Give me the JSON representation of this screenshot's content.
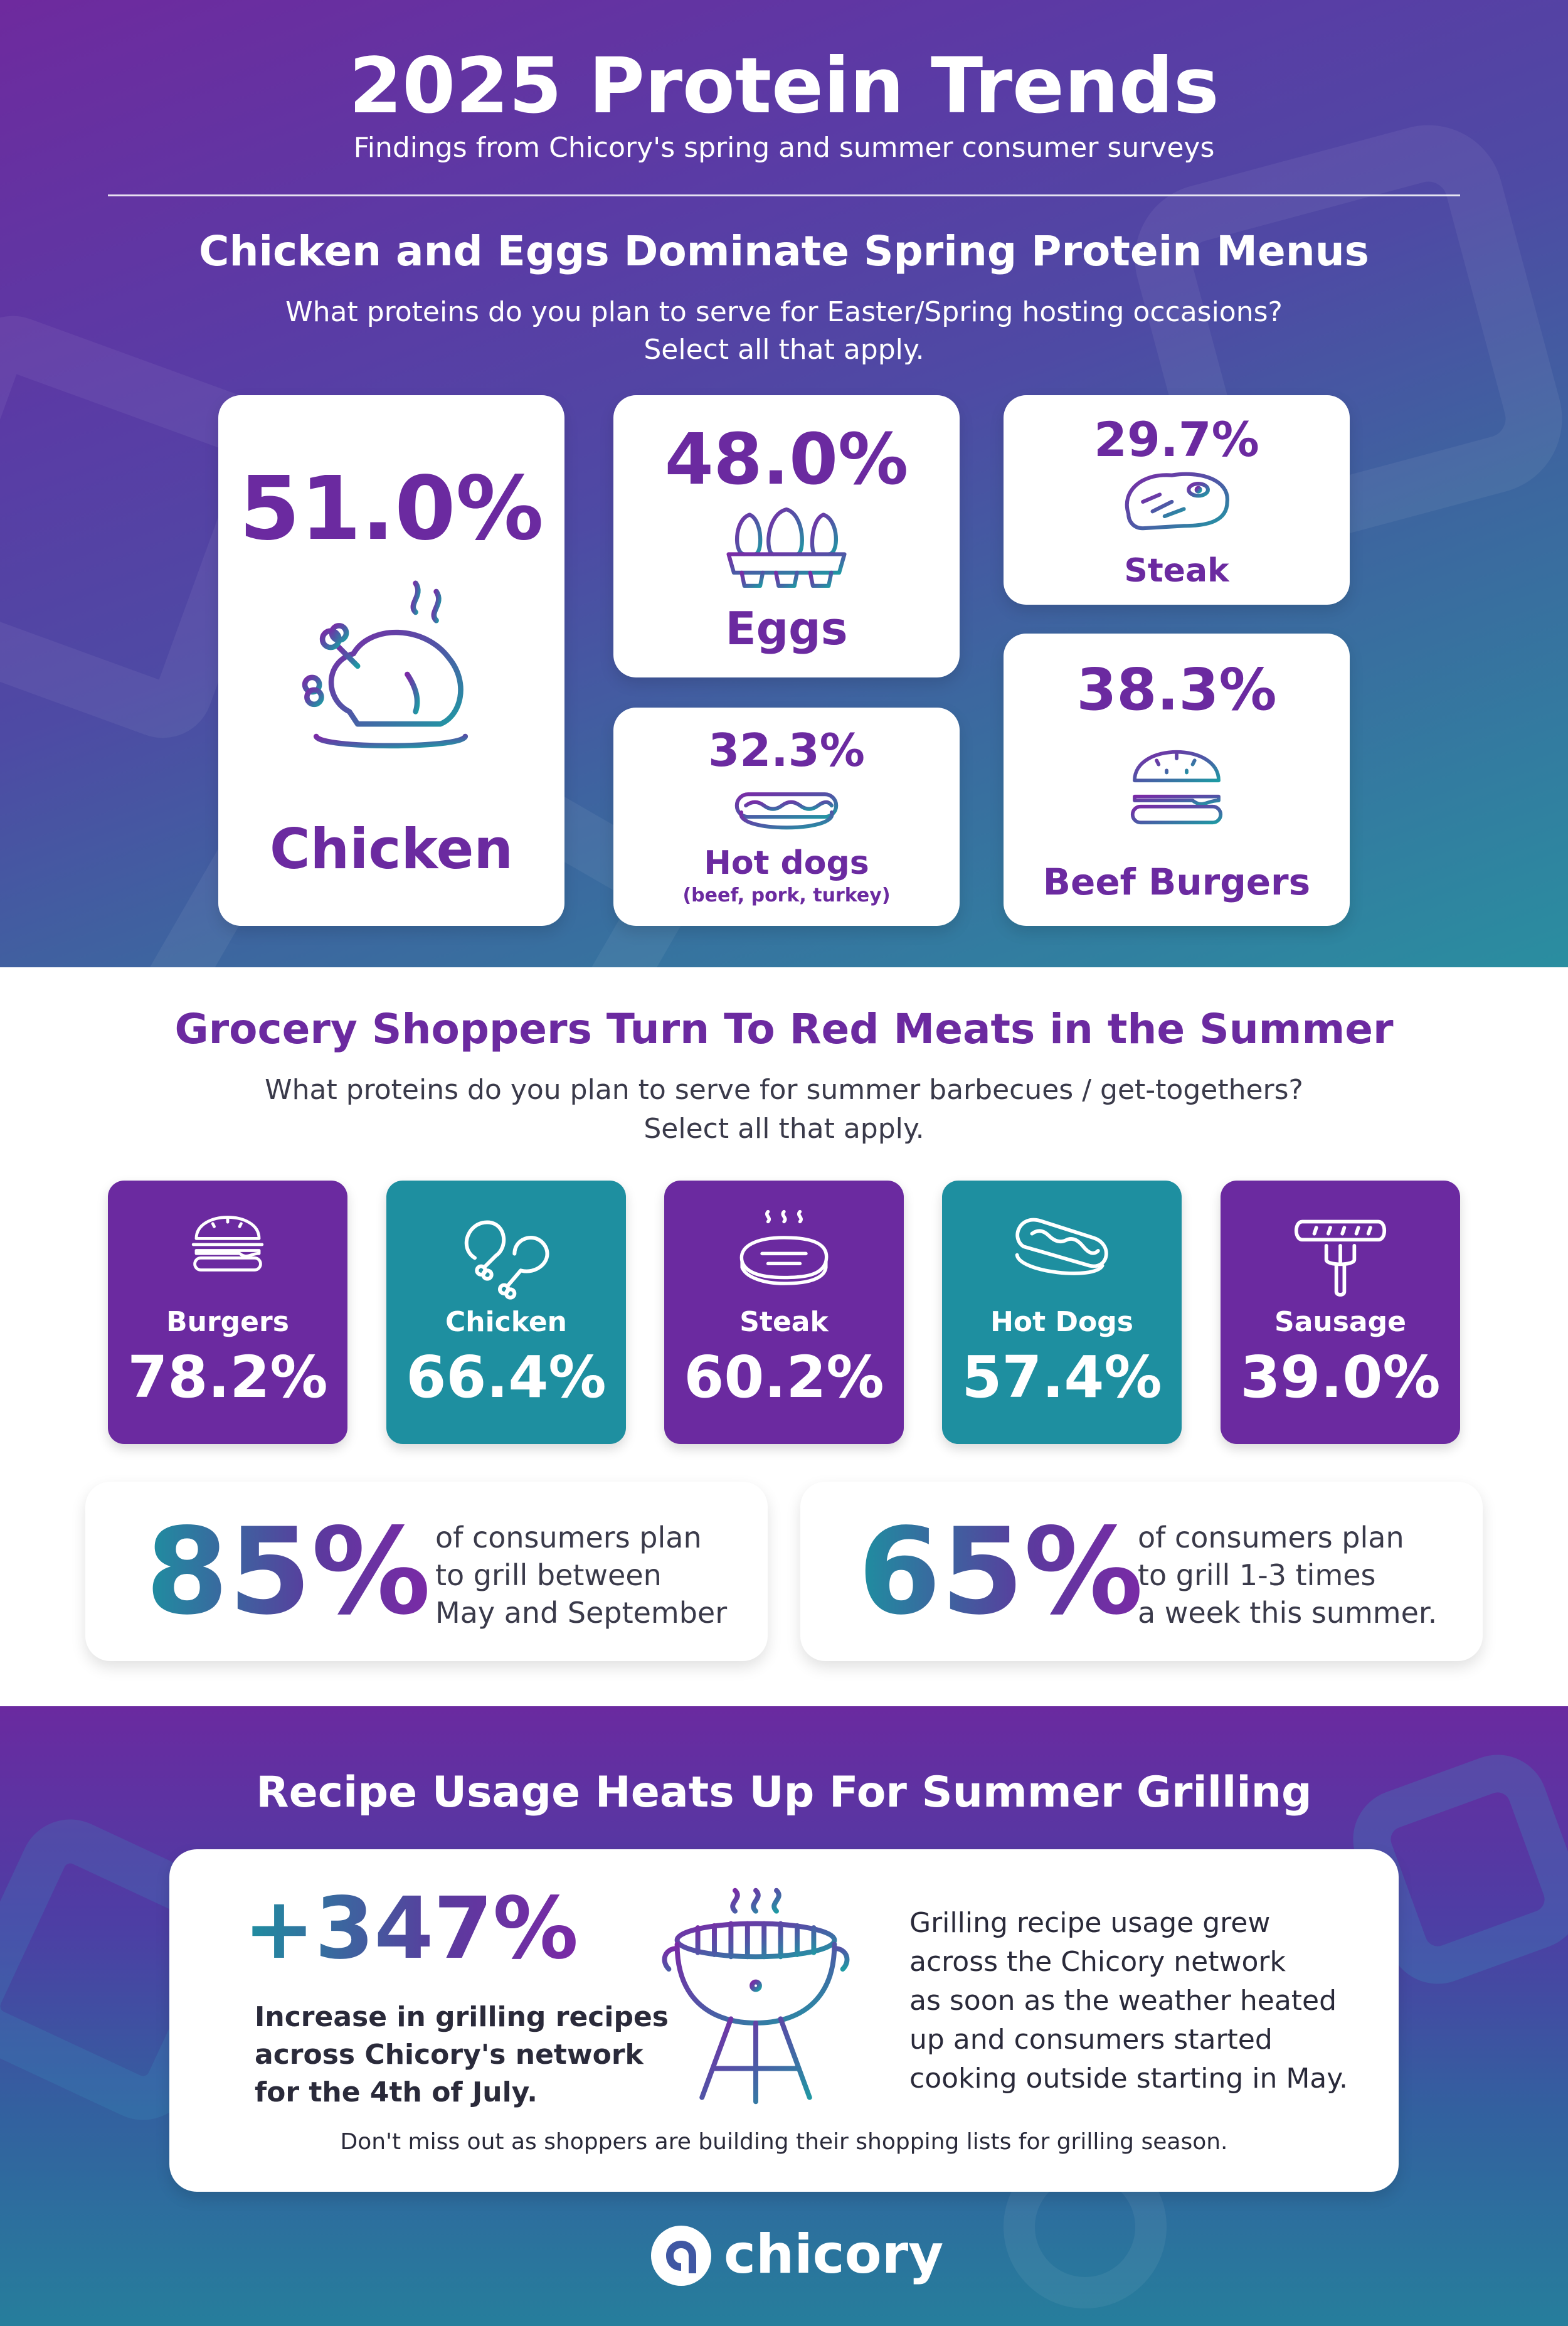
{
  "header": {
    "title": "2025 Protein Trends",
    "subtitle": "Findings from Chicory's spring and summer consumer surveys"
  },
  "spring": {
    "heading": "Chicken and Eggs Dominate Spring Protein Menus",
    "question_line1": "What proteins do you plan to serve for Easter/Spring hosting occasions?",
    "question_line2": "Select all that apply.",
    "items": [
      {
        "label": "Chicken",
        "value": "51.0%",
        "icon": "roast-chicken-icon"
      },
      {
        "label": "Eggs",
        "value": "48.0%",
        "icon": "eggs-carton-icon"
      },
      {
        "label": "Steak",
        "value": "29.7%",
        "icon": "steak-icon"
      },
      {
        "label": "Hot dogs",
        "sublabel": "(beef, pork, turkey)",
        "value": "32.3%",
        "icon": "hot-dog-icon"
      },
      {
        "label": "Beef Burgers",
        "value": "38.3%",
        "icon": "burger-icon"
      }
    ]
  },
  "summer": {
    "heading": "Grocery Shoppers Turn To Red Meats in the Summer",
    "question_line1": "What proteins do you plan to serve for summer barbecues / get-togethers?",
    "question_line2": "Select all that apply.",
    "items": [
      {
        "label": "Burgers",
        "value": "78.2%",
        "icon": "burger-icon",
        "color": "#6b2aa0"
      },
      {
        "label": "Chicken",
        "value": "66.4%",
        "icon": "drumstick-icon",
        "color": "#1e8fa0"
      },
      {
        "label": "Steak",
        "value": "60.2%",
        "icon": "steak-icon",
        "color": "#6b2aa0"
      },
      {
        "label": "Hot Dogs",
        "value": "57.4%",
        "icon": "hot-dog-icon",
        "color": "#1e8fa0"
      },
      {
        "label": "Sausage",
        "value": "39.0%",
        "icon": "sausage-fork-icon",
        "color": "#6b2aa0"
      }
    ],
    "stats": [
      {
        "value": "85%",
        "line1": "of consumers plan",
        "line2": "to grill between",
        "line3": "May and September"
      },
      {
        "value": "65%",
        "line1": "of consumers plan",
        "line2": "to grill 1-3 times",
        "line3": "a week this summer."
      }
    ]
  },
  "recipes": {
    "heading": "Recipe Usage Heats Up For Summer Grilling",
    "stat": "+347%",
    "stat_line1": "Increase in grilling recipes",
    "stat_line2": "across Chicory's network",
    "stat_line3": "for the 4th of July.",
    "desc_line1": "Grilling recipe usage grew",
    "desc_line2": "across the Chicory network",
    "desc_line3": "as soon as the weather heated",
    "desc_line4": "up and consumers started",
    "desc_line5": "cooking outside starting in May.",
    "footer_note": "Don't miss out as shoppers are building their shopping lists for grilling season.",
    "grill_icon": "grill-icon"
  },
  "brand": {
    "name": "chicory",
    "logo_icon": "chicory-logo-icon"
  },
  "colors": {
    "purple": "#6b2aa0",
    "teal": "#1e8fa0"
  }
}
